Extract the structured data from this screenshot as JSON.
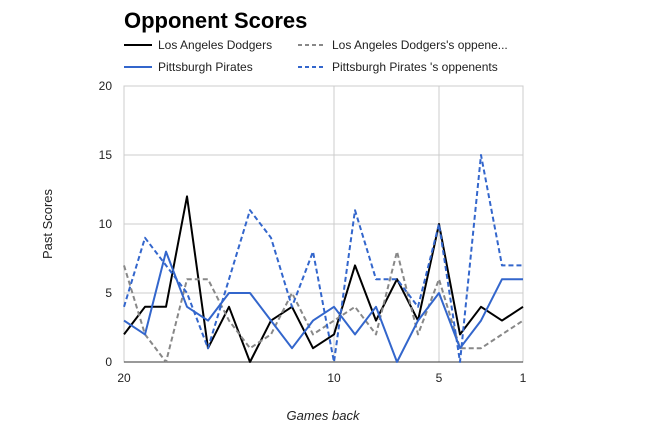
{
  "chart_data": {
    "type": "line",
    "title": "Opponent Scores",
    "xlabel": "Games back",
    "ylabel": "Past Scores",
    "xlim": [
      20,
      1
    ],
    "ylim": [
      0,
      20
    ],
    "x_reversed": true,
    "x_ticks": [
      20,
      10,
      5,
      1
    ],
    "y_ticks": [
      0,
      5,
      10,
      15,
      20
    ],
    "x_tick_labels": [
      "20",
      "10",
      "5",
      "1"
    ],
    "y_tick_labels": [
      "0",
      "5",
      "10",
      "15",
      "20"
    ],
    "grid": true,
    "legend_position": "top",
    "x": [
      20,
      19,
      18,
      17,
      16,
      15,
      14,
      13,
      12,
      11,
      10,
      9,
      8,
      7,
      6,
      5,
      4,
      3,
      2,
      1
    ],
    "series": [
      {
        "name": "Los Angeles Dodgers",
        "color": "#000000",
        "dash": "solid",
        "values": [
          2,
          4,
          4,
          12,
          1,
          4,
          0,
          3,
          4,
          1,
          2,
          7,
          3,
          6,
          3,
          10,
          2,
          4,
          3,
          4
        ]
      },
      {
        "name": "Los Angeles Dodgers's oppene...",
        "color": "#888888",
        "dash": "dashed",
        "values": [
          7,
          2,
          0,
          6,
          6,
          3,
          1,
          2,
          5,
          2,
          3,
          4,
          2,
          8,
          2,
          6,
          1,
          1,
          2,
          3
        ]
      },
      {
        "name": "Pittsburgh Pirates",
        "color": "#3366cc",
        "dash": "solid",
        "values": [
          3,
          2,
          8,
          4,
          3,
          5,
          5,
          3,
          1,
          3,
          4,
          2,
          4,
          0,
          3,
          5,
          1,
          3,
          6,
          6
        ]
      },
      {
        "name": "Pittsburgh Pirates 's oppenents",
        "color": "#3366cc",
        "dash": "dashed",
        "values": [
          4,
          9,
          7,
          5,
          1,
          6,
          11,
          9,
          4,
          8,
          0,
          11,
          6,
          6,
          4,
          10,
          0,
          15,
          7,
          7
        ]
      }
    ]
  }
}
